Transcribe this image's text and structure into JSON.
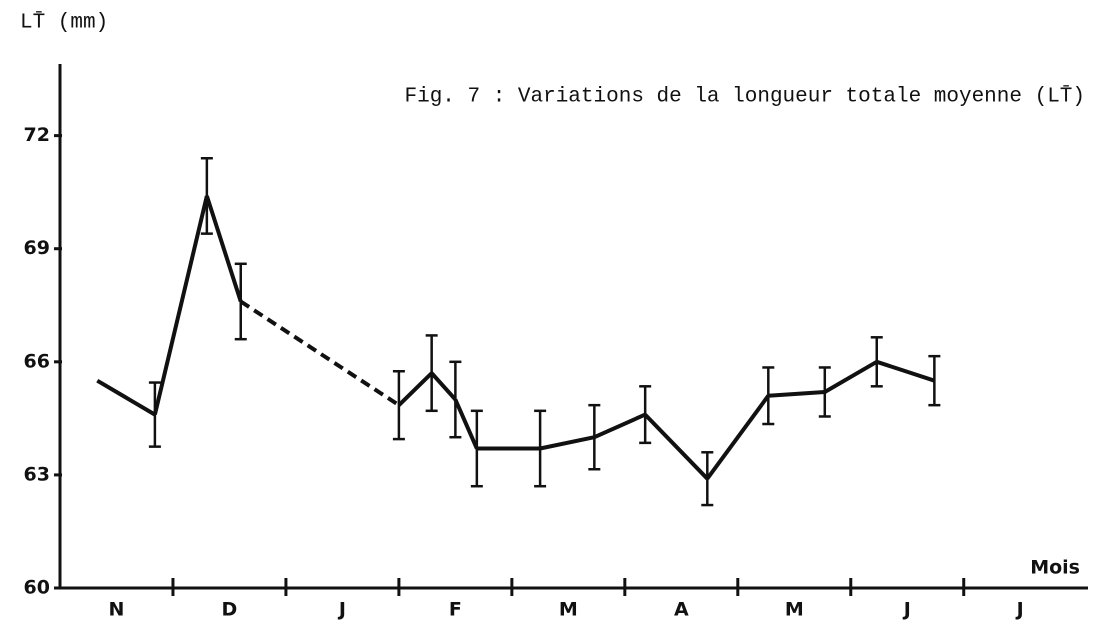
{
  "chart_data": {
    "type": "line",
    "title": "Fig. 7 : Variations de la longueur totale moyenne (LT̄)",
    "ylabel": "LT̄ (mm)",
    "xlabel": "Mois",
    "x": [
      0.33,
      0.84,
      1.3,
      1.6,
      3.0,
      3.29,
      3.5,
      3.69,
      4.25,
      4.73,
      5.18,
      5.73,
      6.27,
      6.77,
      7.23,
      7.74
    ],
    "values": [
      65.5,
      64.6,
      70.4,
      67.6,
      64.85,
      65.7,
      65.0,
      63.7,
      63.7,
      64.0,
      64.6,
      62.9,
      65.1,
      65.2,
      66.0,
      65.5
    ],
    "errors": [
      null,
      0.85,
      1.0,
      1.0,
      0.9,
      1.0,
      1.0,
      1.0,
      1.0,
      0.85,
      0.75,
      0.7,
      0.75,
      0.65,
      0.65,
      0.65
    ],
    "dashed_after": [
      3
    ],
    "color": "#111111",
    "xlim": [
      0,
      9.1
    ],
    "xticks": [
      {
        "value": 0.5,
        "label": "N"
      },
      {
        "value": 1.5,
        "label": "D"
      },
      {
        "value": 2.5,
        "label": "J"
      },
      {
        "value": 3.5,
        "label": "F"
      },
      {
        "value": 4.5,
        "label": "M"
      },
      {
        "value": 5.5,
        "label": "A"
      },
      {
        "value": 6.5,
        "label": "M"
      },
      {
        "value": 7.5,
        "label": "J"
      },
      {
        "value": 8.5,
        "label": "J"
      }
    ],
    "ylim": [
      60,
      73.9
    ],
    "yticks": [
      60,
      63,
      66,
      69,
      72
    ]
  }
}
